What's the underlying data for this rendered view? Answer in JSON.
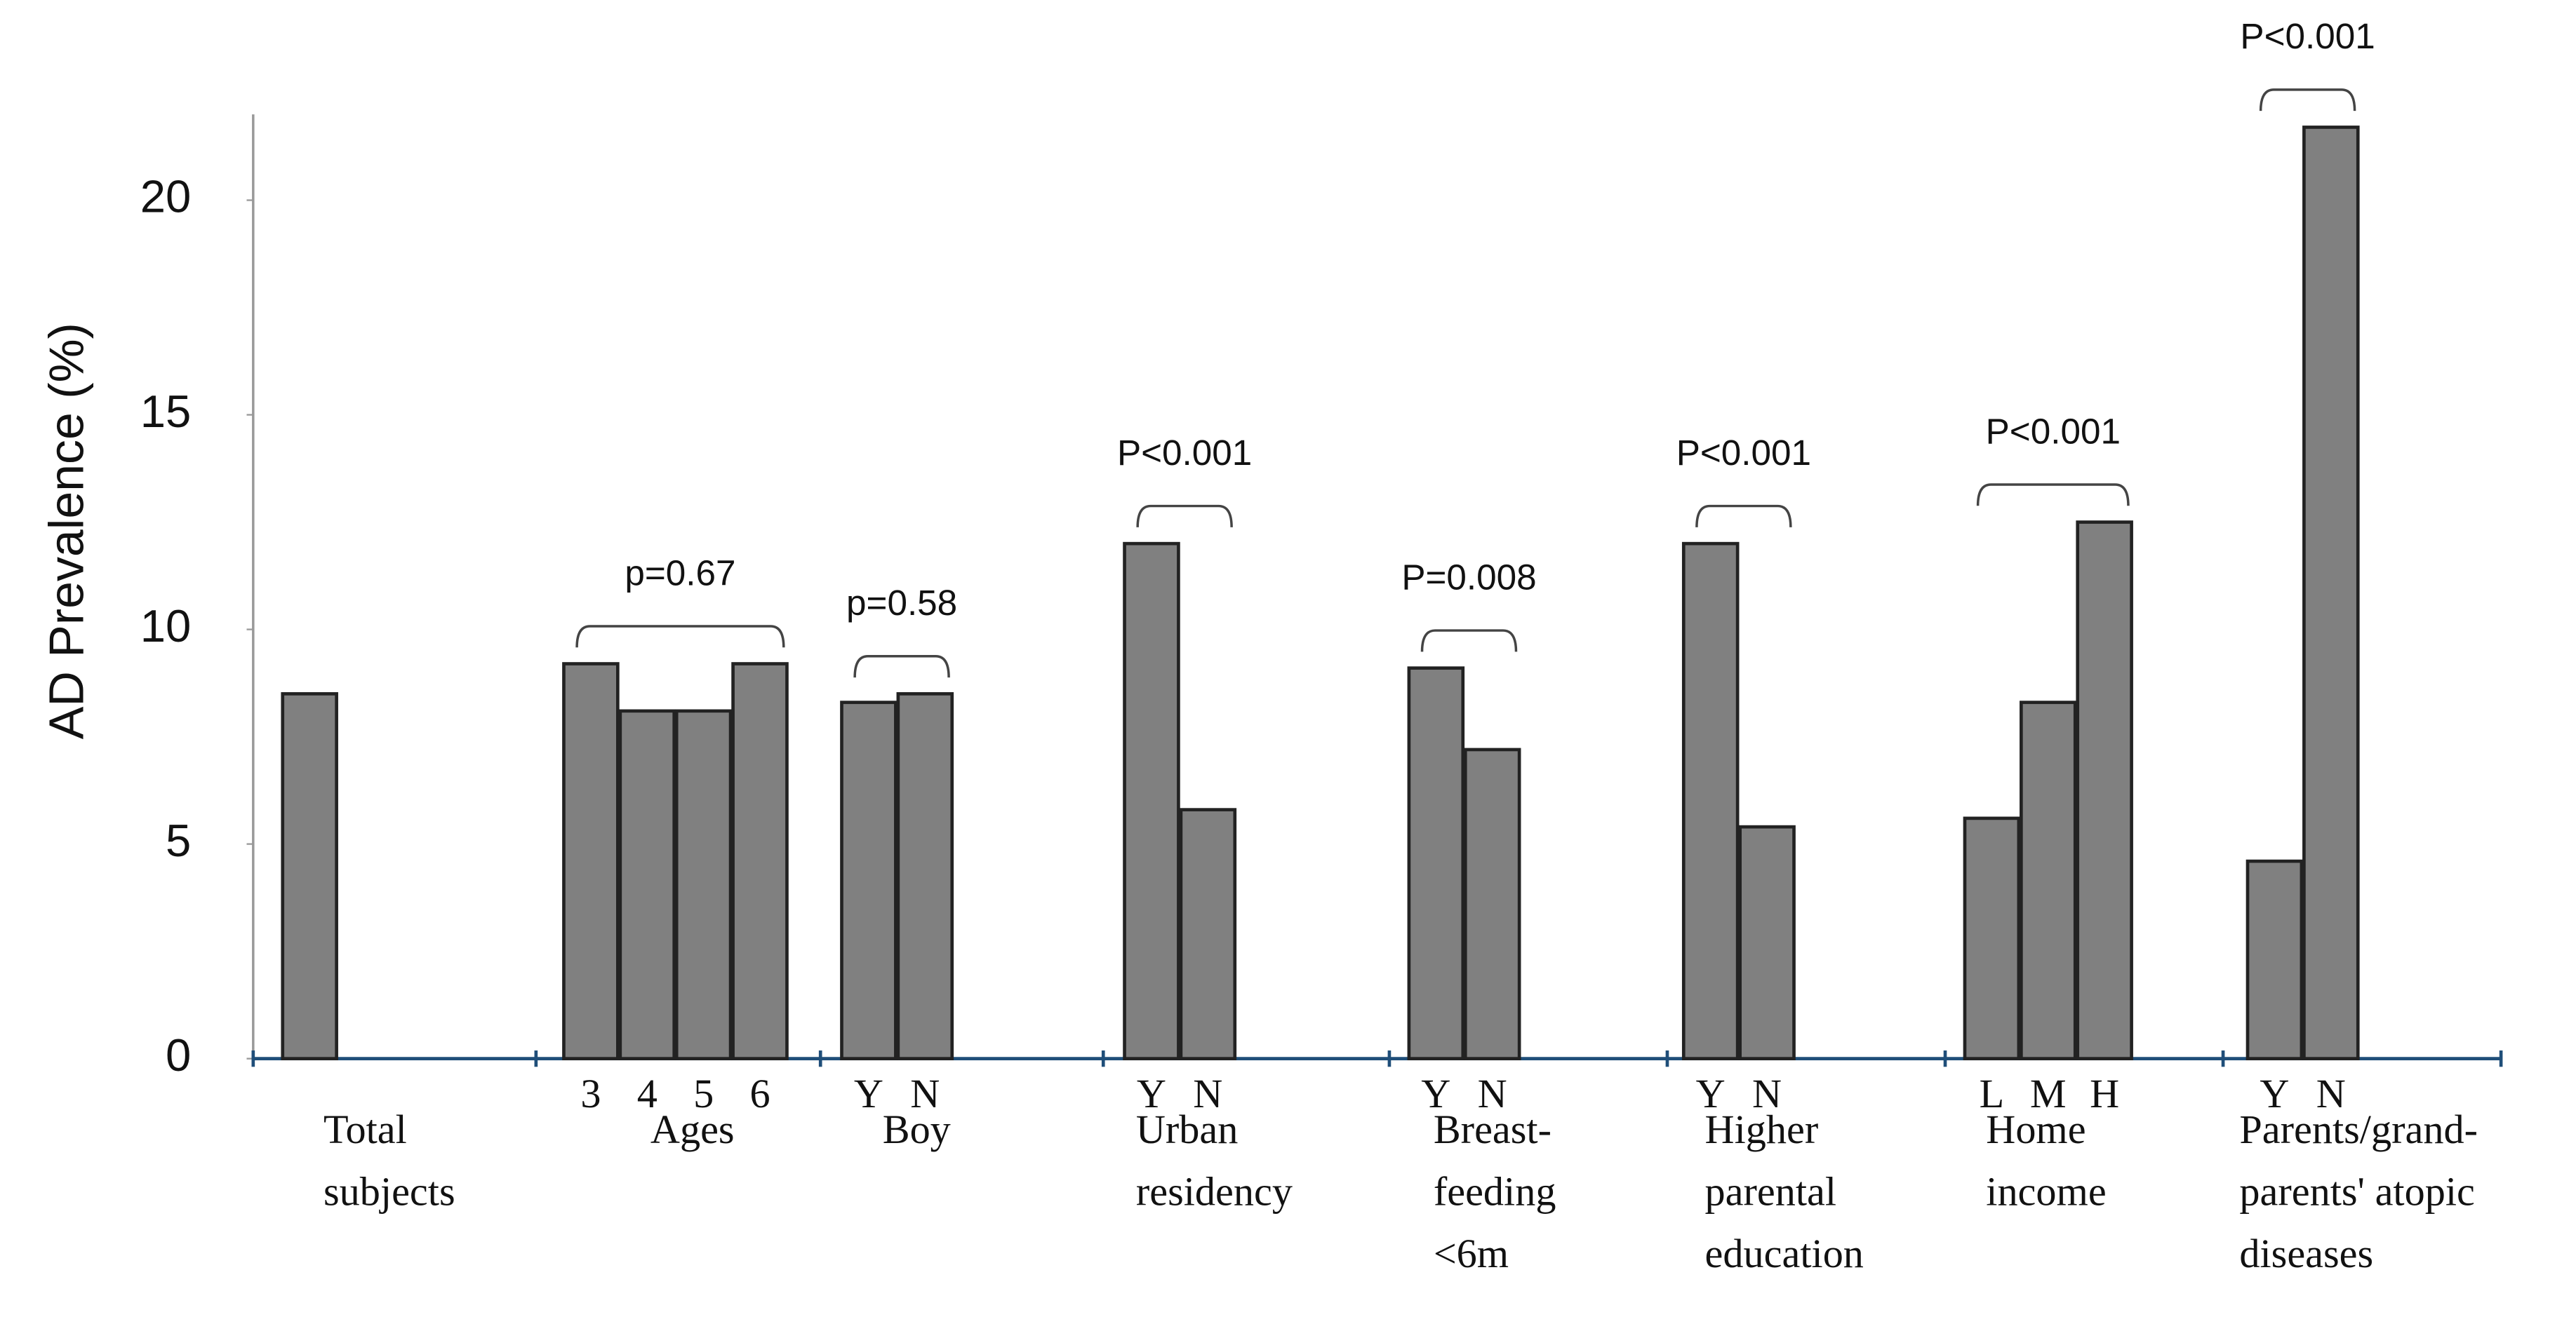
{
  "chart_data": {
    "type": "bar",
    "y_label": "AD Prevalence (%)",
    "ylim": [
      0,
      22
    ],
    "yticks": [
      0,
      5,
      10,
      15,
      20
    ],
    "color": "#808080",
    "groups": [
      {
        "label": [
          "Total",
          "subjects"
        ],
        "categories": [
          null
        ],
        "values": [
          8.5
        ]
      },
      {
        "label": [
          "Ages"
        ],
        "p_value": "p=0.67",
        "categories": [
          "3",
          "4",
          "5",
          "6"
        ],
        "values": [
          9.2,
          8.1,
          8.1,
          9.2
        ]
      },
      {
        "label": [
          "Boy"
        ],
        "p_value": "p=0.58",
        "categories": [
          "Y",
          "N"
        ],
        "values": [
          8.3,
          8.5
        ]
      },
      {
        "label": [
          "Urban",
          "residency"
        ],
        "p_value": "P<0.001",
        "categories": [
          "Y",
          "N"
        ],
        "values": [
          12.0,
          5.8
        ]
      },
      {
        "label": [
          "Breast-",
          "feeding",
          "<6m"
        ],
        "p_value": "P=0.008",
        "categories": [
          "Y",
          "N"
        ],
        "values": [
          9.1,
          7.2
        ]
      },
      {
        "label": [
          "Higher",
          "parental",
          "education"
        ],
        "p_value": "P<0.001",
        "categories": [
          "Y",
          "N"
        ],
        "values": [
          12.0,
          5.4
        ]
      },
      {
        "label": [
          "Home",
          "income"
        ],
        "p_value": "P<0.001",
        "categories": [
          "L",
          "M",
          "H"
        ],
        "values": [
          5.6,
          8.3,
          12.5
        ]
      },
      {
        "label": [
          "Parents/grand-",
          "parents' atopic",
          "diseases"
        ],
        "p_value": "P<0.001",
        "categories": [
          "Y",
          "N"
        ],
        "values": [
          4.6,
          21.7
        ]
      }
    ]
  }
}
